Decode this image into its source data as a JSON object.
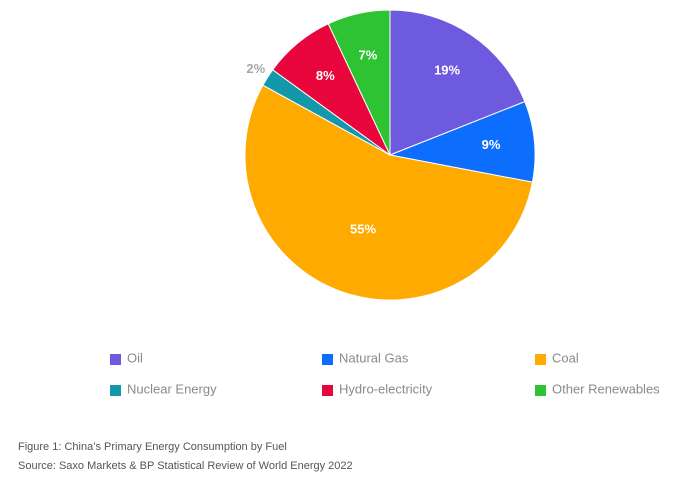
{
  "chart_data": {
    "type": "pie",
    "categories": [
      "Oil",
      "Natural Gas",
      "Coal",
      "Nuclear Energy",
      "Hydro-electricity",
      "Other Renewables"
    ],
    "values": [
      19,
      9,
      55,
      2,
      8,
      7
    ],
    "labels": [
      "19%",
      "9%",
      "55%",
      "2%",
      "8%",
      "7%"
    ],
    "colors": [
      "#6e5ade",
      "#0d6efd",
      "#ffaa00",
      "#1198aa",
      "#e8063c",
      "#2ec332"
    ],
    "start_angle": "12 o'clock",
    "direction": "clockwise",
    "legend_position": "bottom",
    "legend_columns": 3
  },
  "caption": {
    "line1": "Figure 1: China’s Primary Energy Consumption by Fuel",
    "line2": "Source: Saxo Markets & BP Statistical Review of World Energy 2022"
  }
}
